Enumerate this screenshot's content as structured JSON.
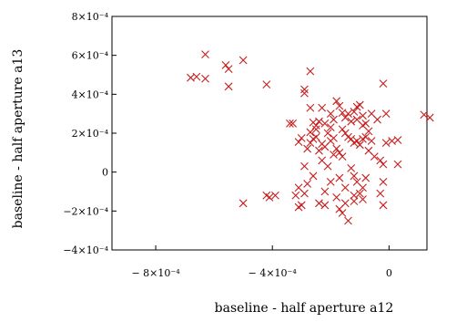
{
  "chart_data": {
    "type": "scatter",
    "title": "",
    "xlabel": "baseline - half aperture a12",
    "ylabel": "baseline - half aperture a13",
    "xlim": [
      -0.00095,
      0.00013
    ],
    "ylim": [
      -0.0004,
      0.0008
    ],
    "grid": false,
    "marker": "x",
    "marker_color": "#c81e1e",
    "x_ticks": [
      {
        "value": -0.0008,
        "label": "− 8×10⁻⁴"
      },
      {
        "value": -0.0004,
        "label": "− 4×10⁻⁴"
      },
      {
        "value": 0,
        "label": "0"
      }
    ],
    "y_ticks": [
      {
        "value": 0.0008,
        "label": "8×10⁻⁴"
      },
      {
        "value": 0.0006,
        "label": "6×10⁻⁴"
      },
      {
        "value": 0.0004,
        "label": "4×10⁻⁴"
      },
      {
        "value": 0.0002,
        "label": "2×10⁻⁴"
      },
      {
        "value": 0,
        "label": "0"
      },
      {
        "value": -0.0002,
        "label": "−2×10⁻⁴"
      },
      {
        "value": -0.0004,
        "label": "−4×10⁻⁴"
      }
    ],
    "points": [
      [
        -0.00063,
        0.000605
      ],
      [
        -0.00066,
        0.00049
      ],
      [
        -0.00068,
        0.000485
      ],
      [
        -0.00063,
        0.00048
      ],
      [
        -0.00056,
        0.00055
      ],
      [
        -0.00055,
        0.00053
      ],
      [
        -0.0005,
        0.000575
      ],
      [
        -0.00055,
        0.00044
      ],
      [
        -0.00042,
        0.00045
      ],
      [
        -0.00027,
        0.000518
      ],
      [
        -0.00029,
        0.000425
      ],
      [
        -0.00029,
        0.000405
      ],
      [
        -0.00027,
        0.00033
      ],
      [
        -0.0003,
        0.000175
      ],
      [
        -0.00031,
        0.000155
      ],
      [
        -0.00033,
        0.00025
      ],
      [
        -0.00027,
        0.000205
      ],
      [
        -0.00026,
        0.000255
      ],
      [
        -0.00025,
        0.00022
      ],
      [
        -0.00024,
        0.00026
      ],
      [
        -0.00025,
        0.00018
      ],
      [
        -0.00023,
        0.000145
      ],
      [
        -0.00022,
        0.00025
      ],
      [
        -0.00021,
        0.0002
      ],
      [
        -0.0002,
        0.00016
      ],
      [
        -0.00019,
        0.000175
      ],
      [
        -0.00018,
        0.000365
      ],
      [
        -0.00017,
        0.00034
      ],
      [
        -0.00016,
        0.000305
      ],
      [
        -0.00015,
        0.00028
      ],
      [
        -0.00014,
        0.0003
      ],
      [
        -0.00012,
        0.00031
      ],
      [
        -0.00011,
        0.000335
      ],
      [
        -0.0001,
        0.000345
      ],
      [
        -9e-05,
        0.00029
      ],
      [
        -8e-05,
        0.00025
      ],
      [
        -7e-05,
        0.00021
      ],
      [
        -6e-05,
        0.0003
      ],
      [
        -4e-05,
        0.00027
      ],
      [
        -2e-05,
        0.000455
      ],
      [
        -1e-05,
        0.0003
      ],
      [
        1e-05,
        0.00016
      ],
      [
        -1e-05,
        0.00015
      ],
      [
        3e-05,
        0.000165
      ],
      [
        -0.00016,
        0.00022
      ],
      [
        -0.00015,
        0.0002
      ],
      [
        -0.00014,
        0.00018
      ],
      [
        -0.00013,
        0.00017
      ],
      [
        -0.00012,
        0.00015
      ],
      [
        -0.00011,
        0.00016
      ],
      [
        -0.0001,
        0.00014
      ],
      [
        -9e-05,
        0.00017
      ],
      [
        -0.00018,
        0.00012
      ],
      [
        -0.00017,
        0.0001
      ],
      [
        -0.00016,
        8e-05
      ],
      [
        -0.00019,
        9e-05
      ],
      [
        -0.00022,
        0.00013
      ],
      [
        -0.00024,
        0.00011
      ],
      [
        -0.00026,
        0.00017
      ],
      [
        -0.00028,
        0.00012
      ],
      [
        -0.00029,
        3e-05
      ],
      [
        -0.00026,
        -2e-05
      ],
      [
        -0.00028,
        -6e-05
      ],
      [
        -0.00029,
        -0.00011
      ],
      [
        -0.00024,
        -0.00016
      ],
      [
        -0.00022,
        -0.0001
      ],
      [
        -0.0002,
        -5e-05
      ],
      [
        -0.00018,
        -0.00013
      ],
      [
        -0.00017,
        -3e-05
      ],
      [
        -0.00015,
        -8e-05
      ],
      [
        -0.00013,
        2e-05
      ],
      [
        -0.00012,
        -2e-05
      ],
      [
        -0.00011,
        -5e-05
      ],
      [
        -0.0001,
        -0.00011
      ],
      [
        -9e-05,
        -0.00014
      ],
      [
        -0.00012,
        -0.00012
      ],
      [
        -0.00015,
        -0.00016
      ],
      [
        -0.00017,
        -0.00019
      ],
      [
        -0.0003,
        -0.00017
      ],
      [
        -0.00031,
        -0.00018
      ],
      [
        -0.00032,
        -0.00012
      ],
      [
        -0.00031,
        -8e-05
      ],
      [
        -0.00022,
        -0.00017
      ],
      [
        -0.00016,
        -0.00021
      ],
      [
        -0.00014,
        -0.00025
      ],
      [
        -0.00012,
        -0.00015
      ],
      [
        -6e-05,
        0.00016
      ],
      [
        -7e-05,
        0.00011
      ],
      [
        -5e-05,
        8e-05
      ],
      [
        -3e-05,
        6e-05
      ],
      [
        -2e-05,
        4e-05
      ],
      [
        3e-05,
        4e-05
      ],
      [
        -2e-05,
        -5e-05
      ],
      [
        -3e-05,
        -0.00011
      ],
      [
        -2e-05,
        -0.00017
      ],
      [
        0.00012,
        0.000295
      ],
      [
        0.00014,
        0.00028
      ],
      [
        -0.00042,
        -0.00012
      ],
      [
        -0.00041,
        -0.00013
      ],
      [
        -0.00039,
        -0.00012
      ],
      [
        -0.0005,
        -0.00016
      ],
      [
        -9e-05,
        0.00024
      ],
      [
        -8e-05,
        0.00018
      ],
      [
        -0.00011,
        0.00027
      ],
      [
        -0.00013,
        0.00026
      ],
      [
        -0.0002,
        0.0003
      ],
      [
        -0.00019,
        0.00027
      ],
      [
        -0.00027,
        0.00015
      ],
      [
        -0.00023,
        6e-05
      ],
      [
        -0.00021,
        3e-05
      ],
      [
        -8e-05,
        -3e-05
      ],
      [
        -9e-05,
        -8e-05
      ],
      [
        -0.00034,
        0.00025
      ],
      [
        -0.00023,
        0.00033
      ],
      [
        -0.00025,
        0.00024
      ],
      [
        -0.0002,
        0.00023
      ]
    ]
  }
}
